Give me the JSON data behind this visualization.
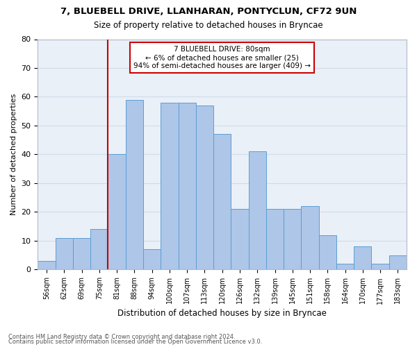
{
  "title1": "7, BLUEBELL DRIVE, LLANHARAN, PONTYCLUN, CF72 9UN",
  "title2": "Size of property relative to detached houses in Bryncae",
  "xlabel": "Distribution of detached houses by size in Bryncae",
  "ylabel": "Number of detached properties",
  "categories": [
    "56sqm",
    "62sqm",
    "69sqm",
    "75sqm",
    "81sqm",
    "88sqm",
    "94sqm",
    "100sqm",
    "107sqm",
    "113sqm",
    "120sqm",
    "126sqm",
    "132sqm",
    "139sqm",
    "145sqm",
    "151sqm",
    "158sqm",
    "164sqm",
    "170sqm",
    "177sqm",
    "183sqm"
  ],
  "values": [
    3,
    11,
    11,
    14,
    40,
    59,
    7,
    58,
    58,
    57,
    47,
    21,
    41,
    21,
    21,
    22,
    12,
    2,
    8,
    2,
    5
  ],
  "bar_color": "#aec6e8",
  "bar_edge_color": "#5a9fd4",
  "vline_x_index": 4,
  "vline_color": "#cc0000",
  "annotation_text": "7 BLUEBELL DRIVE: 80sqm\n← 6% of detached houses are smaller (25)\n94% of semi-detached houses are larger (409) →",
  "annotation_box_color": "#ffffff",
  "annotation_box_edge": "#cc0000",
  "ylim": [
    0,
    80
  ],
  "yticks": [
    0,
    10,
    20,
    30,
    40,
    50,
    60,
    70,
    80
  ],
  "grid_color": "#d0dce8",
  "bg_color": "#eaf0f8",
  "footnote1": "Contains HM Land Registry data © Crown copyright and database right 2024.",
  "footnote2": "Contains public sector information licensed under the Open Government Licence v3.0."
}
